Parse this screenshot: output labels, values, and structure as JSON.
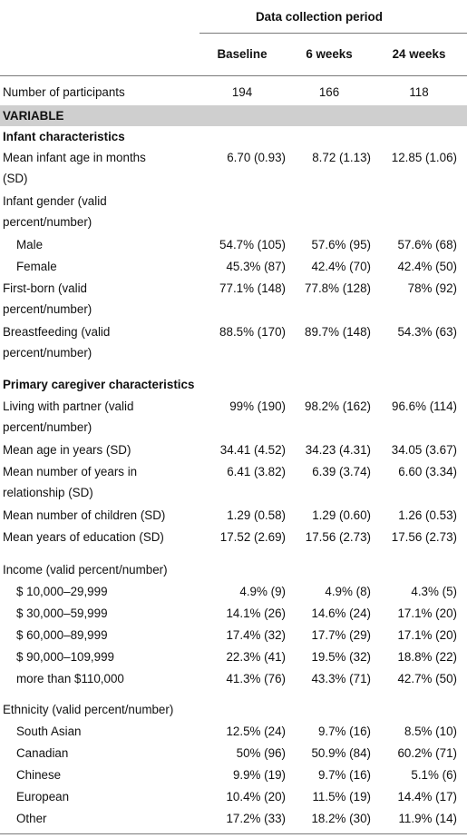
{
  "header": {
    "period_title": "Data collection period",
    "col_baseline": "Baseline",
    "col_6w": "6 weeks",
    "col_24w": "24 weeks"
  },
  "participants": {
    "label": "Number of participants",
    "v": [
      "194",
      "166",
      "118"
    ]
  },
  "variable_header": "VARIABLE",
  "sections": [
    {
      "title": "Infant characteristics",
      "rows": [
        {
          "label": [
            "Mean infant age in months",
            "(SD)"
          ],
          "v": [
            "6.70 (0.93)",
            "8.72 (1.13)",
            "12.85 (1.06)"
          ]
        },
        {
          "label": [
            "Infant gender (valid",
            "percent/number)"
          ],
          "v": [
            "",
            "",
            ""
          ]
        },
        {
          "label": [
            "Male"
          ],
          "v": [
            "54.7% (105)",
            "57.6% (95)",
            "57.6% (68)"
          ]
        },
        {
          "label": [
            "Female"
          ],
          "v": [
            "45.3% (87)",
            "42.4% (70)",
            "42.4% (50)"
          ]
        },
        {
          "label": [
            "First-born (valid",
            "percent/number)"
          ],
          "v": [
            "77.1% (148)",
            "77.8% (128)",
            "78% (92)"
          ]
        },
        {
          "label": [
            "Breastfeeding (valid",
            "percent/number)"
          ],
          "v": [
            "88.5% (170)",
            "89.7% (148)",
            "54.3% (63)"
          ]
        }
      ]
    },
    {
      "title": "Primary caregiver characteristics",
      "rows": [
        {
          "label": [
            "Living with partner (valid",
            "percent/number)"
          ],
          "v": [
            "99% (190)",
            "98.2% (162)",
            "96.6% (114)"
          ]
        },
        {
          "label": [
            "Mean age in years (SD)"
          ],
          "v": [
            "34.41 (4.52)",
            "34.23 (4.31)",
            "34.05 (3.67)"
          ]
        },
        {
          "label": [
            "Mean number of years in",
            "relationship (SD)"
          ],
          "v": [
            "6.41 (3.82)",
            "6.39 (3.74)",
            "6.60 (3.34)"
          ]
        },
        {
          "label": [
            "Mean number of children (SD)"
          ],
          "v": [
            "1.29 (0.58)",
            "1.29 (0.60)",
            "1.26 (0.53)"
          ]
        },
        {
          "label": [
            "Mean years of education (SD)"
          ],
          "v": [
            "17.52 (2.69)",
            "17.56 (2.73)",
            "17.56 (2.73)"
          ]
        }
      ]
    }
  ],
  "income": {
    "title": "Income (valid percent/number)",
    "rows": [
      {
        "label": "$ 10,000–29,999",
        "v": [
          "4.9% (9)",
          "4.9% (8)",
          "4.3% (5)"
        ]
      },
      {
        "label": "$ 30,000–59,999",
        "v": [
          "14.1% (26)",
          "14.6% (24)",
          "17.1% (20)"
        ]
      },
      {
        "label": "$ 60,000–89,999",
        "v": [
          "17.4% (32)",
          "17.7% (29)",
          "17.1% (20)"
        ]
      },
      {
        "label": "$ 90,000–109,999",
        "v": [
          "22.3% (41)",
          "19.5% (32)",
          "18.8% (22)"
        ]
      },
      {
        "label": "more than $110,000",
        "v": [
          "41.3% (76)",
          "43.3% (71)",
          "42.7% (50)"
        ]
      }
    ]
  },
  "ethnicity": {
    "title": "Ethnicity (valid percent/number)",
    "rows": [
      {
        "label": "South Asian",
        "v": [
          "12.5% (24)",
          "9.7% (16)",
          "8.5% (10)"
        ]
      },
      {
        "label": "Canadian",
        "v": [
          "50% (96)",
          "50.9% (84)",
          "60.2% (71)"
        ]
      },
      {
        "label": "Chinese",
        "v": [
          "9.9% (19)",
          "9.7% (16)",
          "5.1% (6)"
        ]
      },
      {
        "label": "European",
        "v": [
          "10.4% (20)",
          "11.5% (19)",
          "14.4% (17)"
        ]
      },
      {
        "label": "Other",
        "v": [
          "17.2% (33)",
          "18.2% (30)",
          "11.9% (14)"
        ]
      }
    ]
  }
}
